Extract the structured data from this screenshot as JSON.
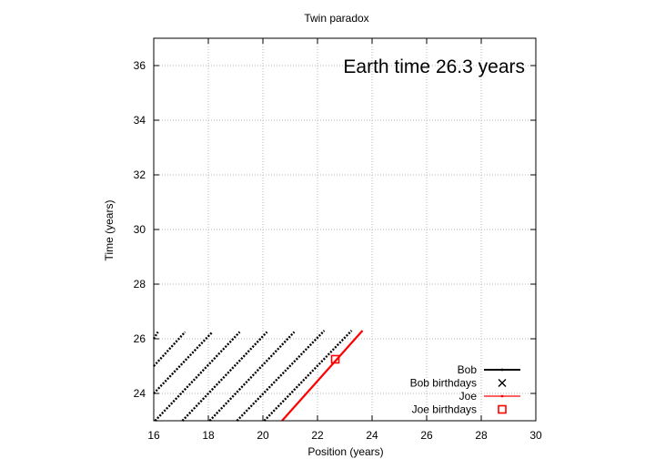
{
  "chart_data": {
    "type": "line",
    "title": "Twin paradox",
    "xlabel": "Position (years)",
    "ylabel": "Time (years)",
    "xlim": [
      16,
      30
    ],
    "ylim": [
      23,
      37
    ],
    "xticks": [
      16,
      18,
      20,
      22,
      24,
      26,
      28,
      30
    ],
    "yticks": [
      24,
      26,
      28,
      30,
      32,
      34,
      36
    ],
    "grid": true,
    "legend_position": "bottom-right",
    "annotation": "Earth time 26.3 years",
    "colors": {
      "bob": "#000000",
      "joe": "#ff0000",
      "grid": "#b4b4b4"
    },
    "series": [
      {
        "name": "Bob",
        "style": "dotted-diagonal-lines",
        "color": "#000000",
        "segments": [
          {
            "x": [
              16.0,
              16.15
            ],
            "y": [
              26.0,
              26.25
            ]
          },
          {
            "x": [
              16.0,
              17.15
            ],
            "y": [
              25.0,
              26.25
            ]
          },
          {
            "x": [
              16.0,
              18.15
            ],
            "y": [
              24.0,
              26.25
            ]
          },
          {
            "x": [
              16.05,
              19.15
            ],
            "y": [
              23.0,
              26.25
            ]
          },
          {
            "x": [
              17.05,
              20.15
            ],
            "y": [
              23.0,
              26.25
            ]
          },
          {
            "x": [
              18.05,
              21.15
            ],
            "y": [
              23.0,
              26.25
            ]
          },
          {
            "x": [
              19.05,
              22.25
            ],
            "y": [
              23.0,
              26.3
            ]
          },
          {
            "x": [
              20.05,
              23.25
            ],
            "y": [
              23.0,
              26.3
            ]
          }
        ]
      },
      {
        "name": "Joe",
        "style": "solid-line",
        "color": "#ff0000",
        "segments": [
          {
            "x": [
              20.7,
              23.65
            ],
            "y": [
              23.0,
              26.3
            ]
          }
        ]
      }
    ],
    "markers": [
      {
        "name": "Bob birthdays",
        "symbol": "x",
        "color": "#000000",
        "points": []
      },
      {
        "name": "Joe birthdays",
        "symbol": "open-square",
        "color": "#ff0000",
        "points": [
          [
            22.65,
            25.25
          ]
        ]
      }
    ],
    "legend": [
      {
        "label": "Bob",
        "symbol": "line",
        "color": "#000000"
      },
      {
        "label": "Bob birthdays",
        "symbol": "x",
        "color": "#000000"
      },
      {
        "label": "Joe",
        "symbol": "line",
        "color": "#ff0000"
      },
      {
        "label": "Joe birthdays",
        "symbol": "open-square",
        "color": "#ff0000"
      }
    ]
  }
}
